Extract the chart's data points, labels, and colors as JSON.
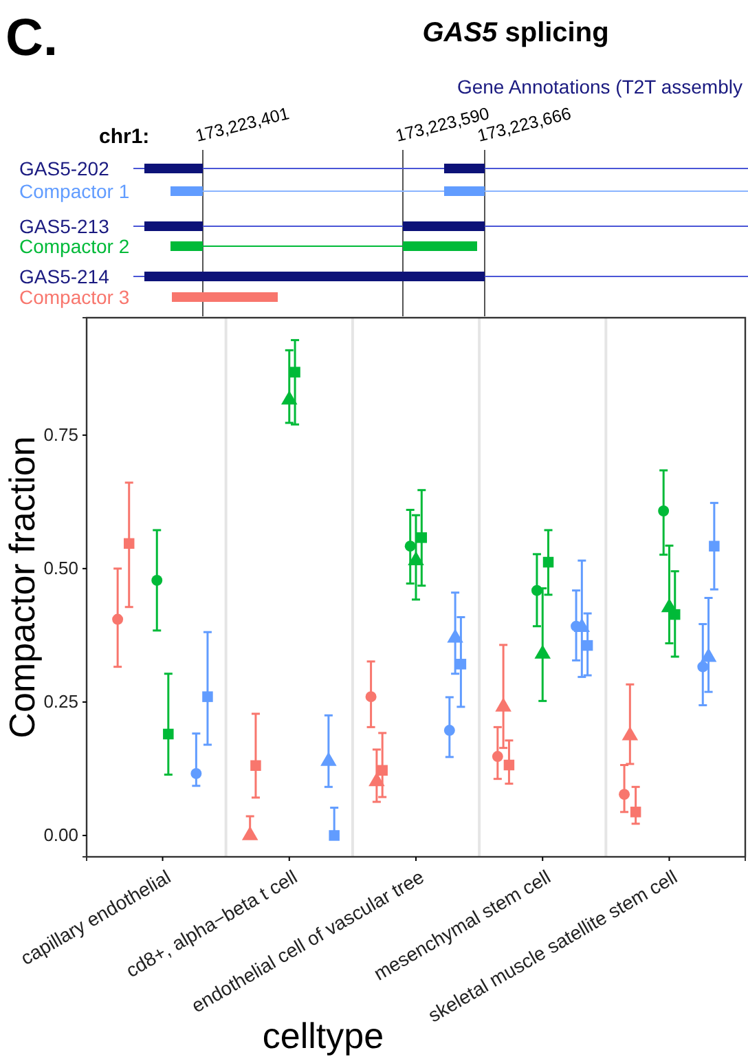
{
  "chart_data": {
    "type": "scatter",
    "title": "GAS5 splicing",
    "xlabel": "celltype",
    "ylabel": "Compactor fraction",
    "annotations": [
      "C.",
      "Gene Annotations (T2T assembly",
      "chr1:",
      "173,223,401",
      "173,223,590",
      "173,223,666",
      "GAS5-202",
      "Compactor 1",
      "GAS5-213",
      "Compactor 2",
      "GAS5-214",
      "Compactor 3"
    ],
    "categories": [
      "capillary endothelial",
      "cd8+, alpha−beta t cell",
      "endothelial cell of vascular tree",
      "mesenchymal stem cell",
      "skeletal muscle satellite stem cell"
    ],
    "ylim": [
      -0.04,
      0.97
    ],
    "yticks": [
      {
        "value": 0,
        "label": "0.00"
      },
      {
        "value": 0.25,
        "label": "0.25"
      },
      {
        "value": 0.5,
        "label": "0.50"
      },
      {
        "value": 0.75,
        "label": "0.75"
      }
    ],
    "grid": "x",
    "series": [
      {
        "color": "#f8766d",
        "marker": "circle",
        "values": [
          0.405,
          null,
          0.26,
          0.148,
          0.077
        ],
        "errors": [
          [
            0.316,
            0.5
          ],
          null,
          [
            0.203,
            0.326
          ],
          [
            0.106,
            0.203
          ],
          [
            0.044,
            0.132
          ]
        ]
      },
      {
        "color": "#f8766d",
        "marker": "triangle",
        "values": [
          null,
          0.0,
          0.101,
          0.241,
          0.187
        ],
        "errors": [
          null,
          [
            0.0,
            0.036
          ],
          [
            0.063,
            0.161
          ],
          [
            0.164,
            0.357
          ],
          [
            0.134,
            0.283
          ]
        ]
      },
      {
        "color": "#f8766d",
        "marker": "square",
        "values": [
          0.547,
          0.131,
          0.122,
          0.132,
          0.044
        ],
        "errors": [
          [
            0.428,
            0.661
          ],
          [
            0.071,
            0.228
          ],
          [
            0.072,
            0.192
          ],
          [
            0.097,
            0.178
          ],
          [
            0.022,
            0.091
          ]
        ]
      },
      {
        "color": "#00ba38",
        "marker": "circle",
        "values": [
          0.478,
          null,
          0.542,
          0.459,
          0.608
        ],
        "errors": [
          [
            0.384,
            0.572
          ],
          null,
          [
            0.472,
            0.61
          ],
          [
            0.392,
            0.527
          ],
          [
            0.526,
            0.684
          ]
        ]
      },
      {
        "color": "#00ba38",
        "marker": "triangle",
        "values": [
          null,
          0.816,
          0.515,
          0.34,
          0.427
        ],
        "errors": [
          null,
          [
            0.773,
            0.909
          ],
          [
            0.442,
            0.6
          ],
          [
            0.252,
            0.463
          ],
          [
            0.36,
            0.543
          ]
        ]
      },
      {
        "color": "#00ba38",
        "marker": "square",
        "values": [
          0.19,
          0.868,
          0.558,
          0.512,
          0.414
        ],
        "errors": [
          [
            0.114,
            0.303
          ],
          [
            0.77,
            0.928
          ],
          [
            0.468,
            0.647
          ],
          [
            0.451,
            0.572
          ],
          [
            0.335,
            0.495
          ]
        ]
      },
      {
        "color": "#619cff",
        "marker": "circle",
        "values": [
          0.116,
          null,
          0.197,
          0.392,
          0.316
        ],
        "errors": [
          [
            0.093,
            0.191
          ],
          null,
          [
            0.147,
            0.259
          ],
          [
            0.328,
            0.459
          ],
          [
            0.244,
            0.396
          ]
        ]
      },
      {
        "color": "#619cff",
        "marker": "triangle",
        "values": [
          null,
          0.139,
          0.37,
          0.39,
          0.334
        ],
        "errors": [
          null,
          [
            0.091,
            0.225
          ],
          [
            0.303,
            0.455
          ],
          [
            0.297,
            0.515
          ],
          [
            0.269,
            0.445
          ]
        ]
      },
      {
        "color": "#619cff",
        "marker": "square",
        "values": [
          0.26,
          0.0,
          0.321,
          0.356,
          0.542
        ],
        "errors": [
          [
            0.17,
            0.381
          ],
          [
            0.0,
            0.052
          ],
          [
            0.241,
            0.409
          ],
          [
            0.3,
            0.416
          ],
          [
            0.461,
            0.623
          ]
        ]
      }
    ]
  }
}
